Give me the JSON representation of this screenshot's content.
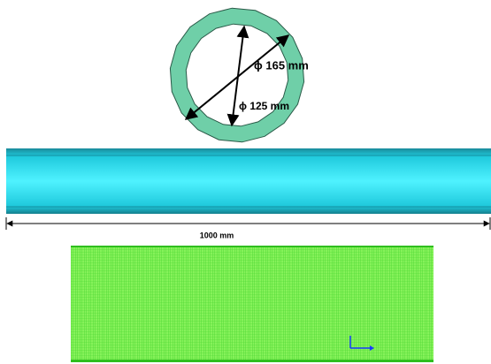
{
  "labels": {
    "outer_diameter": "ϕ 165 mm",
    "inner_diameter": "ϕ 125 mm",
    "length": "1000 mm"
  }
}
